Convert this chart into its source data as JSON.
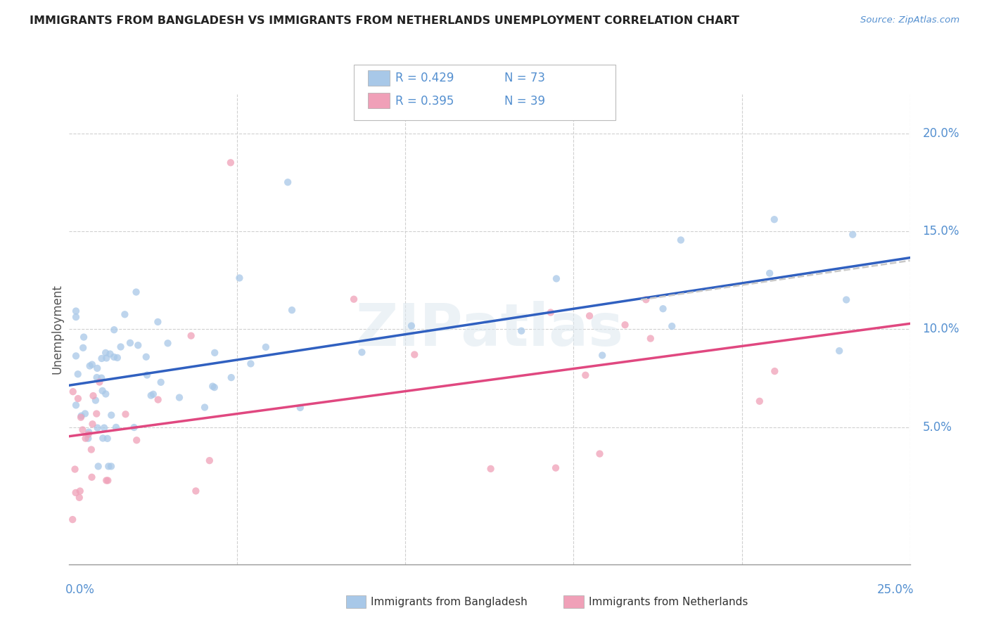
{
  "title": "IMMIGRANTS FROM BANGLADESH VS IMMIGRANTS FROM NETHERLANDS UNEMPLOYMENT CORRELATION CHART",
  "source": "Source: ZipAtlas.com",
  "ylabel": "Unemployment",
  "y_ticks": [
    0.05,
    0.1,
    0.15,
    0.2
  ],
  "y_tick_labels": [
    "5.0%",
    "10.0%",
    "15.0%",
    "20.0%"
  ],
  "x_range": [
    0.0,
    0.25
  ],
  "y_range": [
    -0.02,
    0.22
  ],
  "color_bangladesh": "#a8c8e8",
  "color_netherlands": "#f0a0b8",
  "color_bangladesh_line": "#3060c0",
  "color_netherlands_line": "#e04880",
  "color_trendline_dashed": "#c8c8c8",
  "watermark": "ZIPatlas",
  "background_color": "#ffffff",
  "legend_entries": [
    {
      "label": "R = 0.429",
      "n": "N = 73",
      "color": "#a8c8e8"
    },
    {
      "label": "R = 0.395",
      "n": "N = 39",
      "color": "#f0a0b8"
    }
  ]
}
